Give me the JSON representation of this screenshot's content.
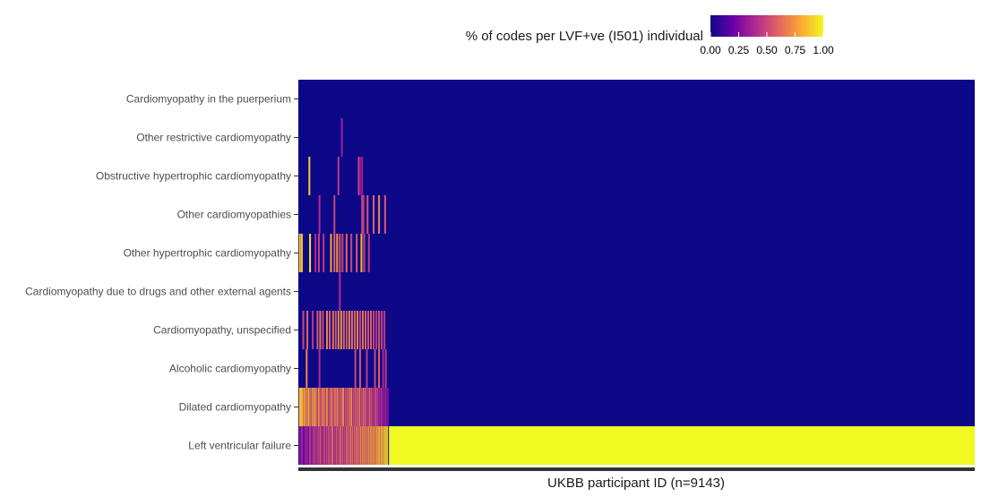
{
  "chart_data": {
    "type": "heatmap",
    "xlabel": "UKBB participant ID (n=9143)",
    "n_participants": 9143,
    "legend": {
      "title": "% of codes per LVF+ve (I501) individual",
      "placement": "top",
      "ticks": [
        "0.00",
        "0.25",
        "0.50",
        "0.75",
        "1.00"
      ],
      "range": [
        0,
        1
      ],
      "palette": [
        "#0d0887",
        "#6a00a8",
        "#b12a90",
        "#e16462",
        "#fca636",
        "#f0f921"
      ]
    },
    "rows": [
      {
        "label": "Cardiomyopathy in the puerperium",
        "stripes": []
      },
      {
        "label": "Other restrictive cardiomyopathy",
        "stripes": [
          [
            0.063,
            0.35
          ]
        ]
      },
      {
        "label": "Obstructive hypertrophic cardiomyopathy",
        "stripes": [
          [
            0.015,
            0.9
          ],
          [
            0.058,
            0.45
          ],
          [
            0.088,
            0.5
          ],
          [
            0.093,
            0.35
          ],
          [
            0.09,
            0.3
          ]
        ]
      },
      {
        "label": "Other cardiomyopathies",
        "stripes": [
          [
            0.03,
            0.4
          ],
          [
            0.052,
            0.5
          ],
          [
            0.093,
            0.5
          ],
          [
            0.101,
            0.55
          ],
          [
            0.11,
            0.6
          ],
          [
            0.118,
            0.7
          ],
          [
            0.127,
            0.55
          ],
          [
            0.095,
            0.45
          ]
        ]
      },
      {
        "label": "Other hypertrophic cardiomyopathy",
        "stripes": [
          [
            0.001,
            0.9
          ],
          [
            0.004,
            0.85
          ],
          [
            0.016,
            0.95
          ],
          [
            0.024,
            0.4
          ],
          [
            0.029,
            0.5
          ],
          [
            0.036,
            0.45
          ],
          [
            0.047,
            0.8
          ],
          [
            0.052,
            0.6
          ],
          [
            0.056,
            0.75
          ],
          [
            0.06,
            0.55
          ],
          [
            0.064,
            0.5
          ],
          [
            0.07,
            0.6
          ],
          [
            0.077,
            0.5
          ],
          [
            0.085,
            0.55
          ],
          [
            0.092,
            0.85
          ],
          [
            0.096,
            0.5
          ],
          [
            0.103,
            0.45
          ]
        ]
      },
      {
        "label": "Cardiomyopathy due to drugs and other external agents",
        "stripes": [
          [
            0.06,
            0.4
          ]
        ]
      },
      {
        "label": "Cardiomyopathy, unspecified",
        "stripes": [
          [
            0.006,
            0.5
          ],
          [
            0.012,
            0.6
          ],
          [
            0.02,
            0.45
          ],
          [
            0.027,
            0.55
          ],
          [
            0.031,
            0.65
          ],
          [
            0.035,
            0.5
          ],
          [
            0.041,
            0.7
          ],
          [
            0.045,
            0.6
          ],
          [
            0.05,
            0.65
          ],
          [
            0.054,
            0.55
          ],
          [
            0.058,
            0.7
          ],
          [
            0.062,
            0.75
          ],
          [
            0.066,
            0.6
          ],
          [
            0.07,
            0.55
          ],
          [
            0.074,
            0.7
          ],
          [
            0.078,
            0.65
          ],
          [
            0.082,
            0.6
          ],
          [
            0.086,
            0.7
          ],
          [
            0.09,
            0.5
          ],
          [
            0.094,
            0.65
          ],
          [
            0.098,
            0.6
          ],
          [
            0.102,
            0.55
          ],
          [
            0.106,
            0.6
          ],
          [
            0.11,
            0.5
          ],
          [
            0.114,
            0.45
          ],
          [
            0.118,
            0.55
          ],
          [
            0.122,
            0.5
          ],
          [
            0.126,
            0.45
          ]
        ]
      },
      {
        "label": "Alcoholic cardiomyopathy",
        "stripes": [
          [
            0.011,
            0.7
          ],
          [
            0.03,
            0.4
          ],
          [
            0.083,
            0.5
          ],
          [
            0.09,
            0.55
          ],
          [
            0.1,
            0.45
          ],
          [
            0.112,
            0.5
          ],
          [
            0.118,
            0.6
          ],
          [
            0.124,
            0.4
          ],
          [
            0.128,
            0.45
          ]
        ]
      },
      {
        "label": "Dilated cardiomyopathy",
        "stripes": [
          [
            0.001,
            0.88
          ],
          [
            0.003,
            0.85
          ],
          [
            0.005,
            0.82
          ],
          [
            0.008,
            0.75
          ],
          [
            0.011,
            0.7
          ],
          [
            0.014,
            0.82
          ],
          [
            0.017,
            0.6
          ],
          [
            0.02,
            0.72
          ],
          [
            0.023,
            0.82
          ],
          [
            0.026,
            0.6
          ],
          [
            0.029,
            0.7
          ],
          [
            0.032,
            0.55
          ],
          [
            0.035,
            0.75
          ],
          [
            0.038,
            0.6
          ],
          [
            0.041,
            0.7
          ],
          [
            0.044,
            0.5
          ],
          [
            0.047,
            0.72
          ],
          [
            0.05,
            0.58
          ],
          [
            0.053,
            0.62
          ],
          [
            0.056,
            0.7
          ],
          [
            0.059,
            0.55
          ],
          [
            0.062,
            0.6
          ],
          [
            0.065,
            0.72
          ],
          [
            0.068,
            0.5
          ],
          [
            0.071,
            0.58
          ],
          [
            0.074,
            0.6
          ],
          [
            0.077,
            0.7
          ],
          [
            0.08,
            0.5
          ],
          [
            0.083,
            0.6
          ],
          [
            0.086,
            0.55
          ],
          [
            0.089,
            0.65
          ],
          [
            0.092,
            0.5
          ],
          [
            0.095,
            0.62
          ],
          [
            0.098,
            0.55
          ],
          [
            0.101,
            0.45
          ],
          [
            0.104,
            0.6
          ],
          [
            0.107,
            0.5
          ],
          [
            0.11,
            0.4
          ],
          [
            0.113,
            0.55
          ],
          [
            0.116,
            0.45
          ],
          [
            0.119,
            0.35
          ],
          [
            0.122,
            0.4
          ],
          [
            0.125,
            0.3
          ],
          [
            0.128,
            0.35
          ],
          [
            0.131,
            0.25
          ]
        ]
      },
      {
        "label": "Left ventricular failure",
        "stripes": [
          [
            0.001,
            0.3
          ],
          [
            0.004,
            0.35
          ],
          [
            0.007,
            0.25
          ],
          [
            0.01,
            0.4
          ],
          [
            0.013,
            0.3
          ],
          [
            0.016,
            0.45
          ],
          [
            0.019,
            0.35
          ],
          [
            0.022,
            0.5
          ],
          [
            0.025,
            0.4
          ],
          [
            0.028,
            0.45
          ],
          [
            0.031,
            0.55
          ],
          [
            0.034,
            0.4
          ],
          [
            0.037,
            0.5
          ],
          [
            0.04,
            0.45
          ],
          [
            0.043,
            0.55
          ],
          [
            0.046,
            0.5
          ],
          [
            0.049,
            0.6
          ],
          [
            0.052,
            0.45
          ],
          [
            0.055,
            0.55
          ],
          [
            0.058,
            0.5
          ],
          [
            0.061,
            0.6
          ],
          [
            0.064,
            0.55
          ],
          [
            0.067,
            0.5
          ],
          [
            0.07,
            0.6
          ],
          [
            0.073,
            0.55
          ],
          [
            0.076,
            0.65
          ],
          [
            0.079,
            0.6
          ],
          [
            0.082,
            0.55
          ],
          [
            0.085,
            0.65
          ],
          [
            0.088,
            0.6
          ],
          [
            0.091,
            0.7
          ],
          [
            0.094,
            0.65
          ],
          [
            0.097,
            0.7
          ],
          [
            0.1,
            0.68
          ],
          [
            0.103,
            0.72
          ],
          [
            0.106,
            0.7
          ],
          [
            0.109,
            0.75
          ],
          [
            0.112,
            0.72
          ],
          [
            0.115,
            0.78
          ],
          [
            0.118,
            0.8
          ],
          [
            0.121,
            0.82
          ],
          [
            0.124,
            0.85
          ],
          [
            0.127,
            0.88
          ],
          [
            0.13,
            0.9
          ]
        ],
        "fill_from": 0.134,
        "fill_value": 1.0
      }
    ]
  }
}
